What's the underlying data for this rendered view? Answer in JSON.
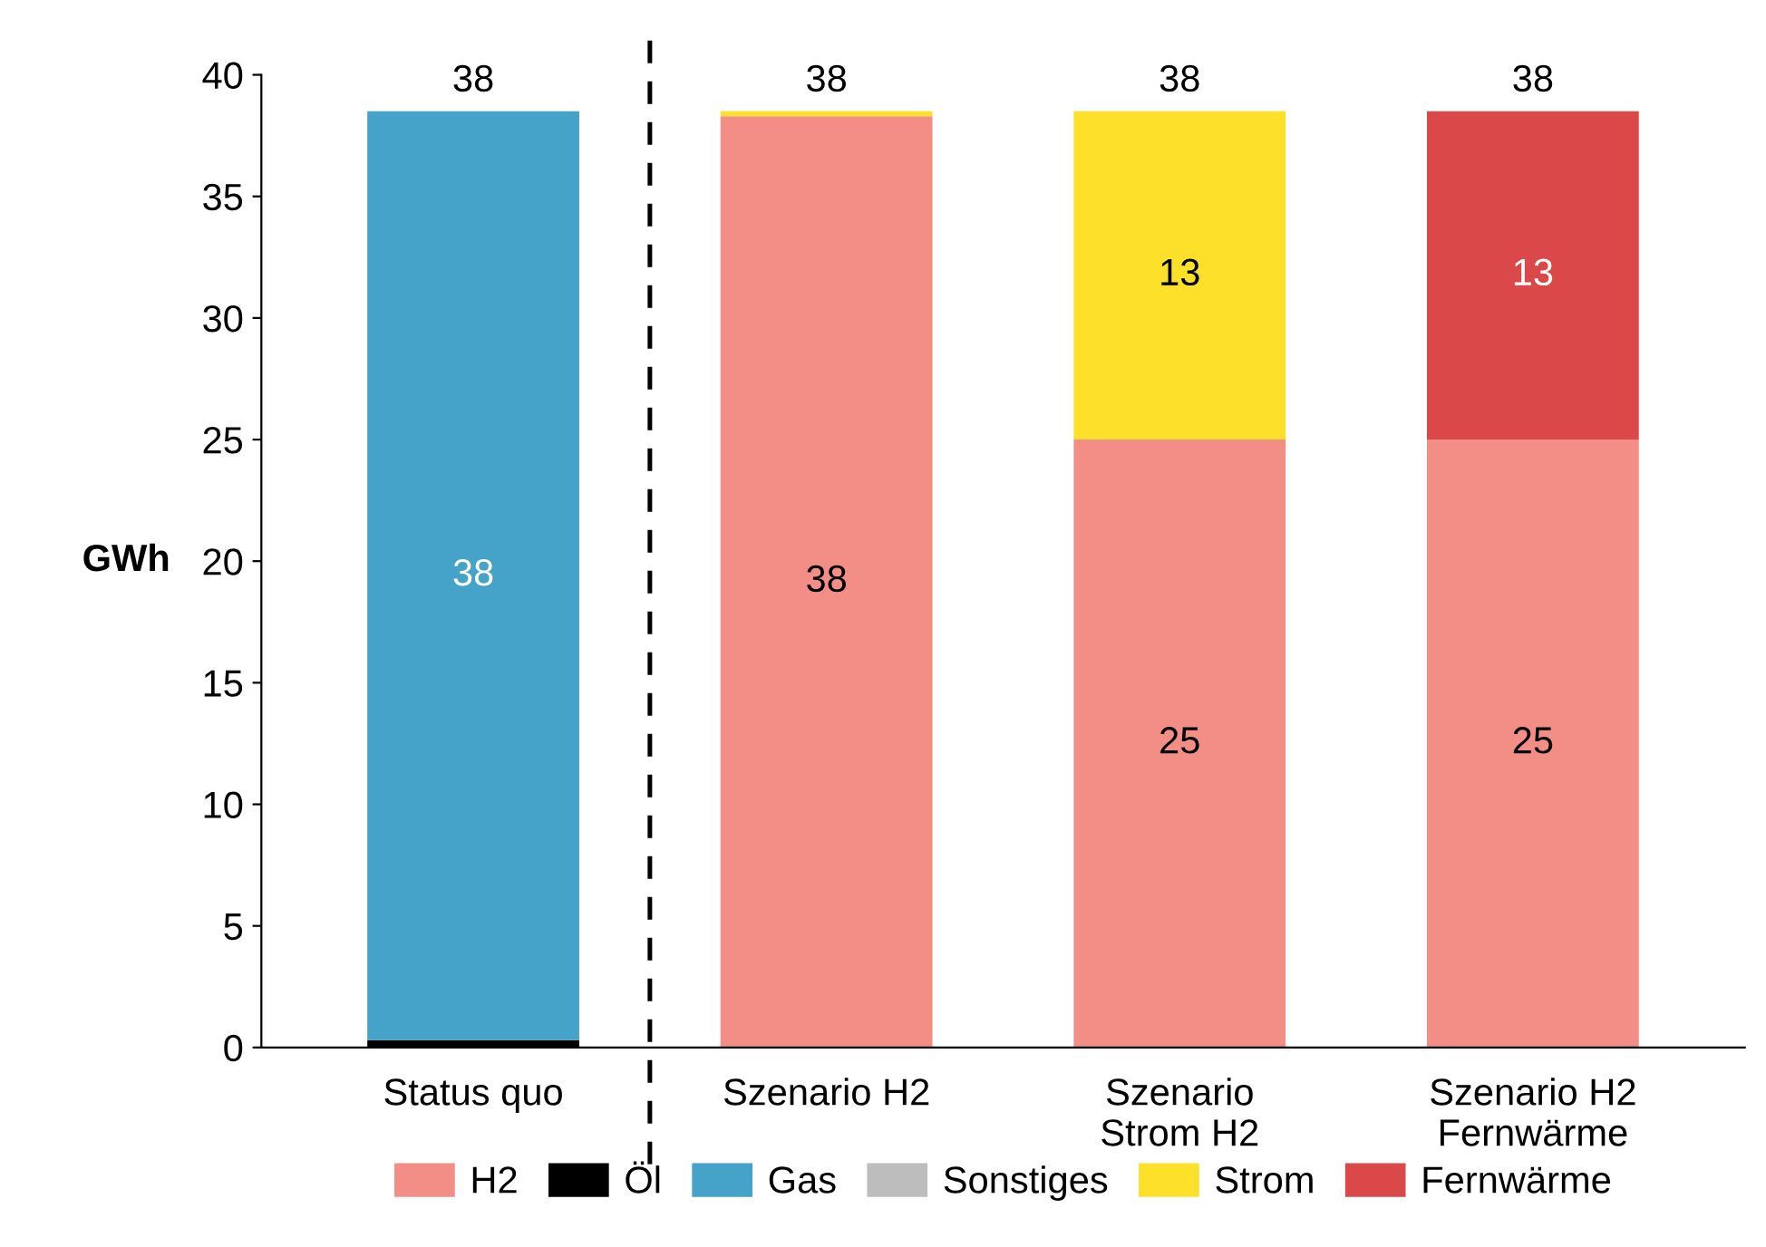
{
  "chart_data": {
    "type": "bar",
    "stacked": true,
    "ylabel": "GWh",
    "categories": [
      "Status quo",
      "Szenario H2",
      "Szenario\nStrom H2",
      "Szenario H2\nFernwärme"
    ],
    "series": [
      {
        "name": "H2",
        "color": "#f28e86",
        "values": [
          null,
          38.3,
          25,
          25
        ],
        "value_labels": [
          null,
          "38",
          "25",
          "25"
        ]
      },
      {
        "name": "Öl",
        "color": "#000000",
        "values": [
          0.3,
          null,
          null,
          null
        ]
      },
      {
        "name": "Gas",
        "color": "#45a2c8",
        "values": [
          38.2,
          null,
          null,
          null
        ],
        "value_labels": [
          "38",
          null,
          null,
          null
        ]
      },
      {
        "name": "Sonstiges",
        "color": "#bdbdbd",
        "values": [
          null,
          null,
          null,
          null
        ]
      },
      {
        "name": "Strom",
        "color": "#fde02a",
        "values": [
          null,
          0.2,
          13.5,
          null
        ],
        "value_labels": [
          null,
          null,
          "13",
          null
        ]
      },
      {
        "name": "Fernwärme",
        "color": "#db484a",
        "values": [
          null,
          null,
          null,
          13.5
        ],
        "value_labels": [
          null,
          null,
          null,
          "13"
        ]
      }
    ],
    "totals": [
      "38",
      "38",
      "38",
      "38"
    ],
    "ylim": [
      0,
      40
    ],
    "yticks": [
      0,
      5,
      10,
      15,
      20,
      25,
      30,
      35,
      40
    ],
    "grid": false,
    "legend": "bottom"
  }
}
